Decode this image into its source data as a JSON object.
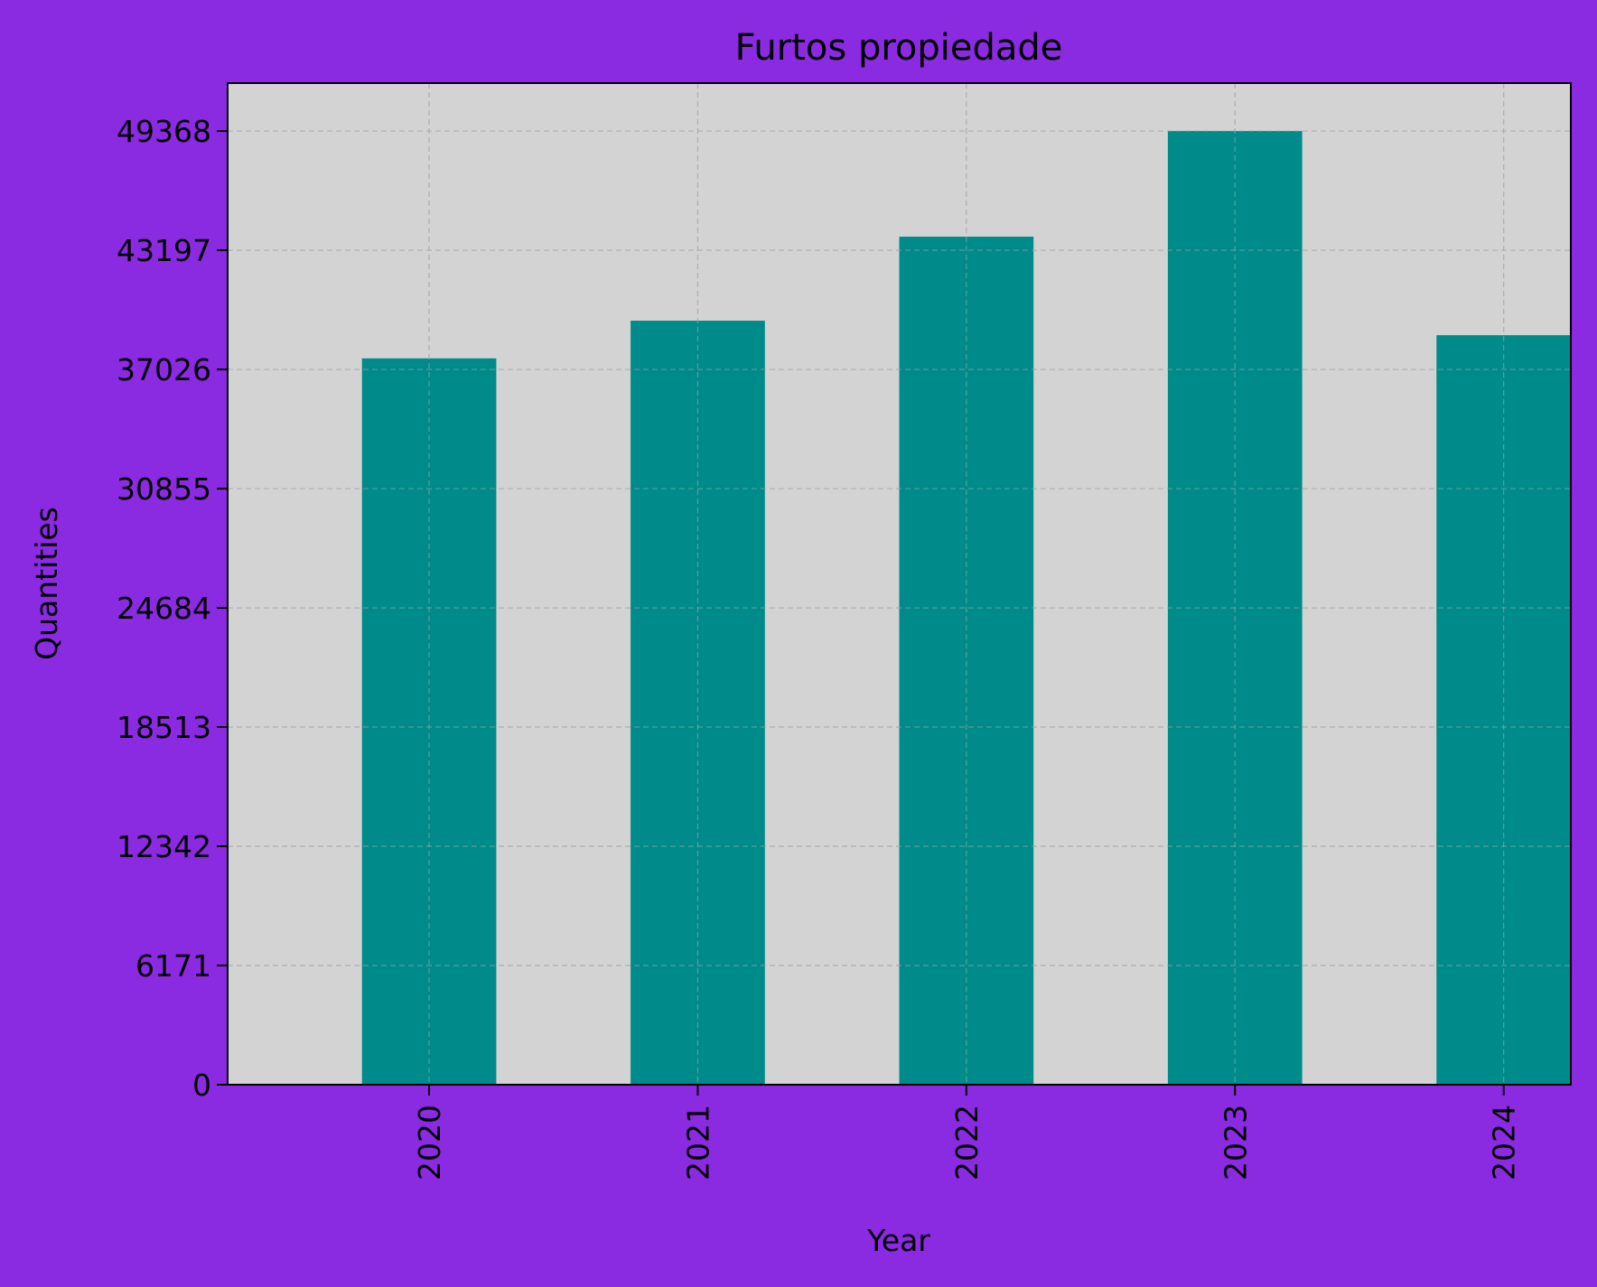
{
  "colors": {
    "figure_background": "#8a2be2",
    "plot_background": "#d3d3d3",
    "bar": "#008b8b",
    "grid": "#b0b0b0",
    "axis": "#000000"
  },
  "chart_data": {
    "type": "bar",
    "title": "Furtos propiedade",
    "xlabel": "Year",
    "ylabel": "Quantities",
    "categories": [
      "2020",
      "2021",
      "2022",
      "2023",
      "2024"
    ],
    "values": [
      37600,
      39550,
      43900,
      49368,
      38800
    ],
    "ylim": [
      0,
      51850
    ],
    "yticks": [
      0,
      6171,
      12342,
      18513,
      24684,
      30855,
      37026,
      43197,
      49368
    ],
    "ytick_labels": [
      "0",
      "6171",
      "12342",
      "18513",
      "24684",
      "30855",
      "37026",
      "43197",
      "49368"
    ],
    "xtick_rotation": "vertical",
    "grid": true,
    "legend": false
  }
}
